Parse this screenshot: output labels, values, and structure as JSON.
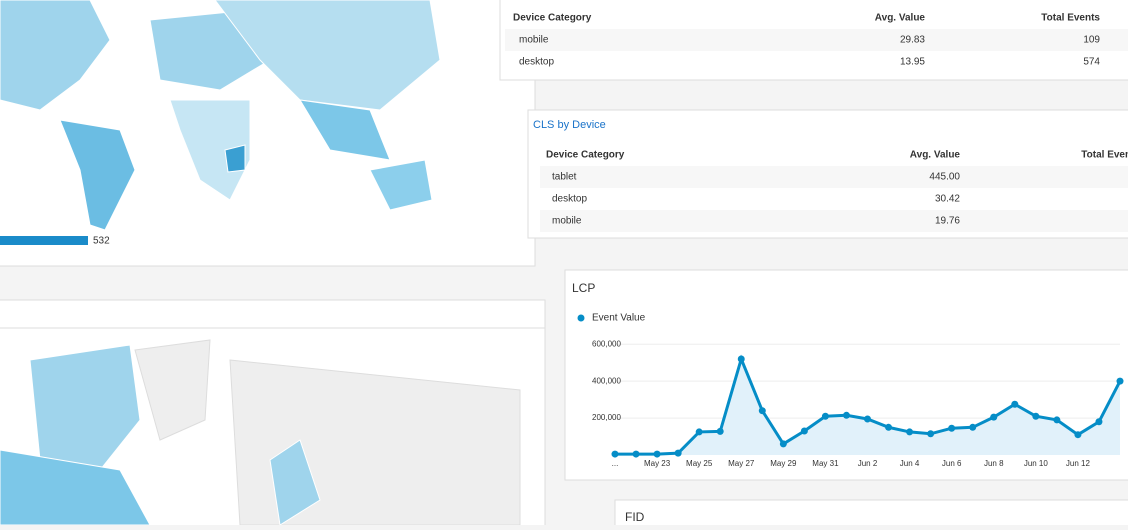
{
  "map": {
    "legend_max": "532"
  },
  "device_table": {
    "headers": [
      "Device Category",
      "Avg. Value",
      "Total Events"
    ],
    "rows": [
      [
        "mobile",
        "29.83",
        "109"
      ],
      [
        "desktop",
        "13.95",
        "574"
      ]
    ]
  },
  "cls_table": {
    "title": "CLS by Device",
    "headers": [
      "Device Category",
      "Avg. Value",
      "Total Events"
    ],
    "rows": [
      [
        "tablet",
        "445.00"
      ],
      [
        "desktop",
        "30.42"
      ],
      [
        "mobile",
        "19.76"
      ]
    ]
  },
  "lcp": {
    "type": "line",
    "title": "LCP",
    "legend": "Event Value",
    "color": "#058dc7",
    "categories": [
      "...",
      null,
      "May 23",
      null,
      "May 25",
      null,
      "May 27",
      null,
      "May 29",
      null,
      "May 31",
      null,
      "Jun 2",
      null,
      "Jun 4",
      null,
      "Jun 6",
      null,
      "Jun 8",
      null,
      "Jun 10",
      null,
      "Jun 12",
      null,
      null
    ],
    "values": [
      5000,
      5000,
      5000,
      10000,
      125000,
      128000,
      520000,
      240000,
      60000,
      130000,
      210000,
      215000,
      195000,
      150000,
      125000,
      115000,
      145000,
      150000,
      205000,
      275000,
      210000,
      190000,
      110000,
      180000,
      400000
    ],
    "ylim": [
      0,
      650000
    ],
    "yticks": [
      {
        "value": 200000,
        "label": "200,000"
      },
      {
        "value": 400000,
        "label": "400,000"
      },
      {
        "value": 600000,
        "label": "600,000"
      }
    ]
  },
  "fid": {
    "title": "FID"
  }
}
